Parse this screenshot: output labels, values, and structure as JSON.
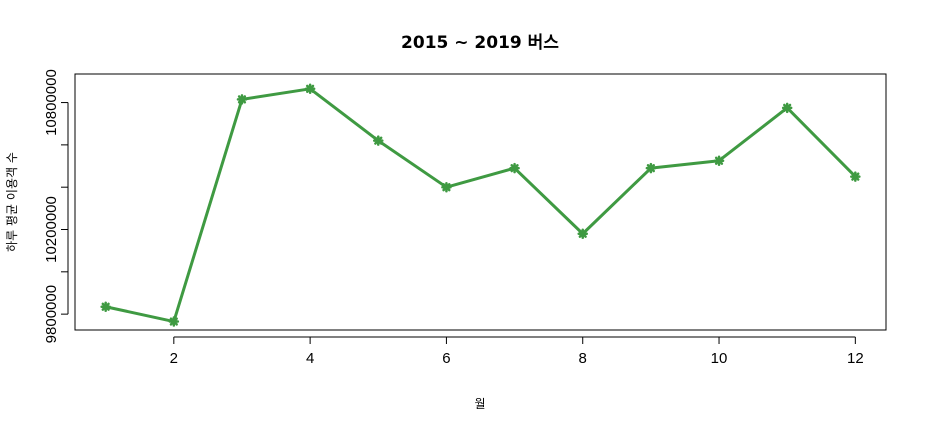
{
  "chart_data": {
    "type": "line",
    "title": "2015 ~ 2019 버스",
    "xlabel": "월",
    "ylabel": "하루 평균 이용객 수",
    "x": [
      1,
      2,
      3,
      4,
      5,
      6,
      7,
      8,
      9,
      10,
      11,
      12
    ],
    "series": [
      {
        "values": [
          9835000,
          9765000,
          10815000,
          10865000,
          10620000,
          10400000,
          10490000,
          10180000,
          10490000,
          10525000,
          10775000,
          10450000
        ]
      }
    ],
    "xlim": [
      0.55,
      12.45
    ],
    "ylim": [
      9725000,
      10935000
    ],
    "x_ticks": [
      2,
      4,
      6,
      8,
      10,
      12
    ],
    "y_ticks": [
      9800000,
      10200000,
      10800000
    ],
    "x_tick_labels": [
      "2",
      "4",
      "6",
      "8",
      "10",
      "12"
    ],
    "y_tick_labels": [
      "9800000",
      "10200000",
      "10800000"
    ],
    "y_minor_ticks": [
      10000000,
      10400000,
      10600000
    ],
    "line_color": "#3f9a42",
    "marker": "asterisk",
    "grid": false,
    "legend": "none"
  }
}
